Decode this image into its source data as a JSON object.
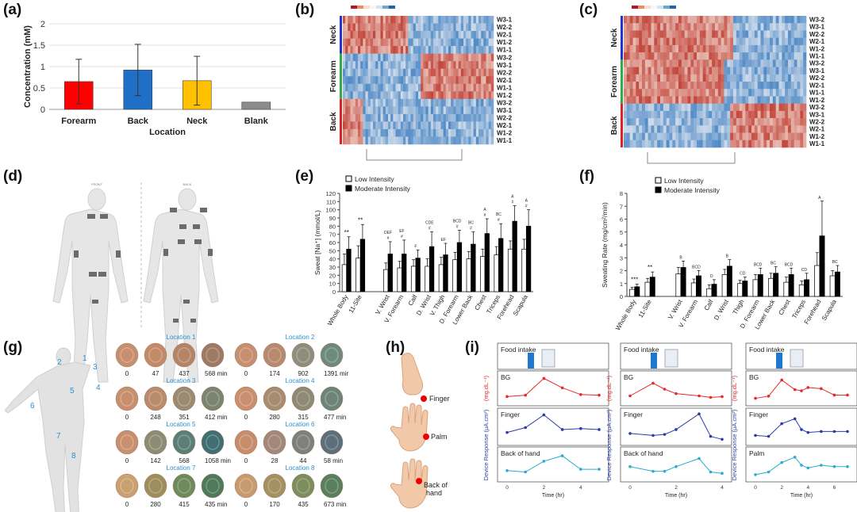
{
  "panels": {
    "a": {
      "label": "(a)"
    },
    "b": {
      "label": "(b)"
    },
    "c": {
      "label": "(c)"
    },
    "d": {
      "label": "(d)"
    },
    "e": {
      "label": "(e)"
    },
    "f": {
      "label": "(f)"
    },
    "g": {
      "label": "(g)"
    },
    "h": {
      "label": "(h)"
    },
    "i": {
      "label": "(i)"
    }
  },
  "chart_data": [
    {
      "id": "a",
      "type": "bar",
      "categories": [
        "Forearm",
        "Back",
        "Neck",
        "Blank"
      ],
      "values": [
        0.65,
        0.92,
        0.67,
        0.17
      ],
      "errors": [
        0.52,
        0.6,
        0.57,
        0
      ],
      "colors": [
        "#ff0000",
        "#1f6fc6",
        "#ffc000",
        "#8c8c8c"
      ],
      "ylabel": "Concentration (mM)",
      "xlabel": "Location",
      "ylim": [
        0,
        2
      ],
      "yticks": [
        "0",
        "0.5",
        "1",
        "1.5",
        "2"
      ],
      "grid": true
    },
    {
      "id": "b",
      "type": "heatmap",
      "groups": [
        "Neck",
        "Forearm",
        "Back"
      ],
      "group_colors": [
        "#2233cc",
        "#33aa44",
        "#dd2222"
      ],
      "row_labels": [
        "W3-1",
        "W2-2",
        "W2-1",
        "W1-2",
        "W1-1",
        "W3-2",
        "W3-1",
        "W2-2",
        "W2-1",
        "W1-1",
        "W1-2",
        "W3-2",
        "W3-1",
        "W2-2",
        "W2-1",
        "W1-2",
        "W1-1"
      ]
    },
    {
      "id": "c",
      "type": "heatmap",
      "groups": [
        "Neck",
        "Forearm",
        "Back"
      ],
      "group_colors": [
        "#2233cc",
        "#33aa44",
        "#dd2222"
      ],
      "row_labels": [
        "W3-2",
        "W3-1",
        "W2-2",
        "W2-1",
        "W1-2",
        "W1-1",
        "W3-2",
        "W3-1",
        "W2-2",
        "W2-1",
        "W1-1",
        "W1-2",
        "W3-2",
        "W3-1",
        "W2-2",
        "W2-1",
        "W1-2",
        "W1-1"
      ]
    },
    {
      "id": "e",
      "type": "bar",
      "categories": [
        "Whole Body",
        "11-Site",
        "V. Wrist",
        "V. Forearm",
        "Calf",
        "D. Wrist",
        "V. Thigh",
        "D. Forearm",
        "Lower Back",
        "Chest",
        "Triceps",
        "Forehead",
        "Scapula"
      ],
      "series": [
        {
          "name": "Low Intensity",
          "values": [
            33,
            41,
            27,
            29,
            31,
            31,
            33,
            39,
            40,
            43,
            45,
            52,
            52
          ],
          "errors": [
            13,
            15,
            8,
            8,
            8,
            9,
            9,
            9,
            9,
            9,
            10,
            10,
            12
          ]
        },
        {
          "name": "Moderate Intensity",
          "values": [
            52,
            64,
            46,
            46,
            41,
            55,
            45,
            60,
            58,
            71,
            65,
            86,
            80
          ],
          "errors": [
            15,
            18,
            15,
            17,
            10,
            18,
            14,
            15,
            15,
            18,
            18,
            19,
            20
          ]
        }
      ],
      "annotations": [
        "**",
        "**",
        "DEF\n#",
        "EF\n#",
        "F",
        "CDE\n#",
        "EF",
        "BCD\n#",
        "BC\n#",
        "A\n#",
        "BC\n#",
        "A\n#",
        "A\n#"
      ],
      "ylabel": "Sweat [Na⁺] (mmol/L)",
      "ylim": [
        0,
        120
      ],
      "yticks": [
        "0",
        "10",
        "20",
        "30",
        "40",
        "50",
        "60",
        "70",
        "80",
        "90",
        "100",
        "110",
        "120"
      ]
    },
    {
      "id": "f",
      "type": "bar",
      "categories": [
        "Whole Body",
        "11-Site",
        "V. Wrist",
        "V. Forearm",
        "Calf",
        "D. Wrist",
        "Thigh",
        "D. Forearm",
        "Lower Back",
        "Chest",
        "Triceps",
        "Forehead",
        "Scapula"
      ],
      "series": [
        {
          "name": "Low Intensity",
          "values": [
            0.55,
            1.1,
            1.75,
            1.05,
            0.6,
            1.7,
            1.0,
            1.3,
            1.4,
            1.1,
            0.9,
            2.4,
            1.6
          ],
          "errors": [
            0.15,
            0.3,
            0.5,
            0.3,
            0.3,
            0.4,
            0.25,
            0.4,
            0.4,
            0.4,
            0.3,
            1.0,
            0.4
          ]
        },
        {
          "name": "Moderate Intensity",
          "values": [
            0.75,
            1.5,
            2.25,
            1.6,
            0.95,
            2.35,
            1.2,
            1.7,
            1.8,
            1.7,
            1.3,
            4.7,
            1.9
          ],
          "errors": [
            0.2,
            0.4,
            0.5,
            0.4,
            0.35,
            0.5,
            0.3,
            0.5,
            0.5,
            0.5,
            0.5,
            2.7,
            0.5
          ]
        }
      ],
      "annotations": [
        "***",
        "**",
        "B",
        "BCD",
        "D",
        "B",
        "CD",
        "BCD",
        "BC",
        "BCD",
        "CD",
        "A",
        "BC"
      ],
      "ylabel": "Sweating Rate (mg/cm²/min)",
      "ylim": [
        0,
        8
      ],
      "yticks": [
        "0",
        "1",
        "2",
        "3",
        "4",
        "5",
        "6",
        "7",
        "8"
      ]
    },
    {
      "id": "i",
      "type": "line",
      "groups": [
        {
          "x": [
            0,
            1,
            2,
            3,
            4,
            5
          ],
          "bg": [
            45,
            55,
            180,
            110,
            60,
            55
          ],
          "r1": [
            1.0,
            1.5,
            2.8,
            1.3,
            1.4,
            1.3
          ],
          "r2": [
            0.6,
            0.5,
            1.3,
            1.7,
            0.7,
            0.7
          ],
          "r2label": "Back of hand"
        },
        {
          "x": [
            0,
            1,
            1.5,
            2,
            3,
            3.5,
            4
          ],
          "bg": [
            45,
            130,
            90,
            60,
            45,
            35,
            40
          ],
          "r1": [
            0.9,
            0.7,
            0.8,
            1.3,
            2.9,
            0.6,
            0.3
          ],
          "r2": [
            0.9,
            0.55,
            0.55,
            0.9,
            1.5,
            0.5,
            0.4
          ],
          "r2label": "Back of hand"
        },
        {
          "x": [
            0,
            1,
            2,
            3,
            3.5,
            4,
            5,
            6,
            7
          ],
          "bg": [
            40,
            60,
            210,
            120,
            110,
            140,
            130,
            70,
            70
          ],
          "r1": [
            0.7,
            0.6,
            1.9,
            2.4,
            1.3,
            1.0,
            1.1,
            1.1,
            1.1
          ],
          "r2": [
            0.3,
            0.5,
            1.2,
            1.6,
            1.0,
            0.8,
            1.0,
            0.9,
            0.9
          ],
          "r2label": "Palm"
        }
      ],
      "xlabel": "Time (hr)",
      "ylabel_bg": "(mg.dL⁻¹)",
      "ylabel_resp": "Device Response (μA.cm²)",
      "row_titles": [
        "Food intake",
        "BG",
        "Finger"
      ],
      "colors": {
        "bg": "#e8282a",
        "r1": "#2d3aa8",
        "r2": "#2aaccc"
      }
    }
  ],
  "panel_d": {
    "front_label": "FRONT",
    "back_label": "BACK"
  },
  "panel_e": {
    "legend": [
      "Low Intensity",
      "Moderate Intensity"
    ]
  },
  "panel_f": {
    "legend": [
      "Low Intensity",
      "Moderate Intensity"
    ]
  },
  "panel_g": {
    "body_numbers": [
      "1",
      "2",
      "3",
      "4",
      "5",
      "6",
      "7",
      "8"
    ],
    "locations": [
      {
        "title": "Location 1",
        "times": [
          "0",
          "47",
          "437",
          "568 min"
        ]
      },
      {
        "title": "Location 2",
        "times": [
          "0",
          "174",
          "902",
          "1391 mir"
        ]
      },
      {
        "title": "Location 3",
        "times": [
          "0",
          "248",
          "351",
          "412 min"
        ]
      },
      {
        "title": "Location 4",
        "times": [
          "0",
          "280",
          "315",
          "477 min"
        ]
      },
      {
        "title": "Location 5",
        "times": [
          "0",
          "142",
          "568",
          "1058 min"
        ]
      },
      {
        "title": "Location 6",
        "times": [
          "0",
          "28",
          "44",
          "58 min"
        ]
      },
      {
        "title": "Location 7",
        "times": [
          "0",
          "280",
          "415",
          "435 min"
        ]
      },
      {
        "title": "Location 8",
        "times": [
          "0",
          "170",
          "435",
          "673 min"
        ]
      }
    ]
  },
  "panel_h": {
    "labels": [
      "Finger",
      "Palm",
      "Back of\nhand"
    ]
  },
  "colors": {
    "heat_red": "#c0392b",
    "heat_blue": "#3b7fc4",
    "accent_blue": "#2c8fd0"
  }
}
